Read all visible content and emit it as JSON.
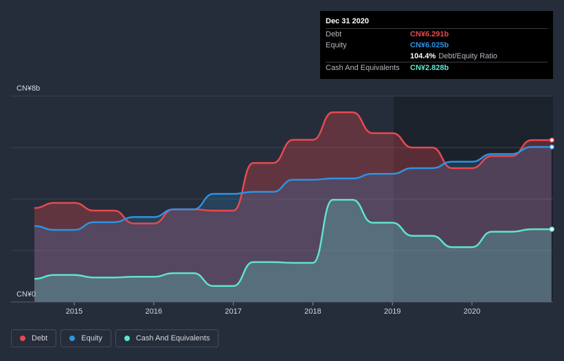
{
  "tooltip": {
    "date": "Dec 31 2020",
    "rows": [
      {
        "label": "Debt",
        "value": "CN¥6.291b",
        "color": "#e84a4f"
      },
      {
        "label": "Equity",
        "value": "CN¥6.025b",
        "color": "#2e93e3"
      }
    ],
    "ratio_value": "104.4%",
    "ratio_label": "Debt/Equity Ratio",
    "cash": {
      "label": "Cash And Equivalents",
      "value": "CN¥2.828b",
      "color": "#5ee5d2"
    }
  },
  "legend": [
    {
      "label": "Debt",
      "color": "#e84a4f"
    },
    {
      "label": "Equity",
      "color": "#2e93e3"
    },
    {
      "label": "Cash And Equivalents",
      "color": "#5ee5d2"
    }
  ],
  "chart_data": {
    "type": "area",
    "title": "",
    "xlabel": "",
    "ylabel": "",
    "ylim": [
      0,
      8
    ],
    "y_unit": "CN¥ billions",
    "y_ticks": [
      {
        "value": 8,
        "label": "CN¥8b"
      },
      {
        "value": 0,
        "label": "CN¥0"
      }
    ],
    "x_ticks": [
      {
        "value": 2015.0,
        "label": "2015"
      },
      {
        "value": 2016.0,
        "label": "2016"
      },
      {
        "value": 2017.0,
        "label": "2017"
      },
      {
        "value": 2018.0,
        "label": "2018"
      },
      {
        "value": 2019.0,
        "label": "2019"
      },
      {
        "value": 2020.0,
        "label": "2020"
      }
    ],
    "xlim": [
      2014.25,
      2021.0
    ],
    "series": [
      {
        "name": "Debt",
        "color": "#e84a4f",
        "points": [
          [
            2014.5,
            3.65
          ],
          [
            2014.75,
            3.85
          ],
          [
            2015.0,
            3.85
          ],
          [
            2015.25,
            3.55
          ],
          [
            2015.5,
            3.55
          ],
          [
            2015.75,
            3.05
          ],
          [
            2016.0,
            3.05
          ],
          [
            2016.25,
            3.6
          ],
          [
            2016.5,
            3.6
          ],
          [
            2016.75,
            3.55
          ],
          [
            2017.0,
            3.55
          ],
          [
            2017.25,
            5.4
          ],
          [
            2017.5,
            5.4
          ],
          [
            2017.75,
            6.3
          ],
          [
            2018.0,
            6.3
          ],
          [
            2018.25,
            7.37
          ],
          [
            2018.5,
            7.37
          ],
          [
            2018.75,
            6.56
          ],
          [
            2019.0,
            6.56
          ],
          [
            2019.25,
            6.0
          ],
          [
            2019.5,
            6.0
          ],
          [
            2019.75,
            5.2
          ],
          [
            2020.0,
            5.2
          ],
          [
            2020.25,
            5.67
          ],
          [
            2020.5,
            5.67
          ],
          [
            2020.75,
            6.291
          ],
          [
            2021.0,
            6.291
          ]
        ]
      },
      {
        "name": "Equity",
        "color": "#2e93e3",
        "points": [
          [
            2014.5,
            2.95
          ],
          [
            2014.75,
            2.8
          ],
          [
            2015.0,
            2.8
          ],
          [
            2015.25,
            3.1
          ],
          [
            2015.5,
            3.1
          ],
          [
            2015.75,
            3.3
          ],
          [
            2016.0,
            3.3
          ],
          [
            2016.25,
            3.6
          ],
          [
            2016.5,
            3.6
          ],
          [
            2016.75,
            4.2
          ],
          [
            2017.0,
            4.2
          ],
          [
            2017.25,
            4.28
          ],
          [
            2017.5,
            4.28
          ],
          [
            2017.75,
            4.75
          ],
          [
            2018.0,
            4.75
          ],
          [
            2018.25,
            4.8
          ],
          [
            2018.5,
            4.8
          ],
          [
            2018.75,
            4.98
          ],
          [
            2019.0,
            4.98
          ],
          [
            2019.25,
            5.2
          ],
          [
            2019.5,
            5.2
          ],
          [
            2019.75,
            5.45
          ],
          [
            2020.0,
            5.45
          ],
          [
            2020.25,
            5.75
          ],
          [
            2020.5,
            5.75
          ],
          [
            2020.75,
            6.025
          ],
          [
            2021.0,
            6.025
          ]
        ]
      },
      {
        "name": "Cash And Equivalents",
        "color": "#5ee5d2",
        "points": [
          [
            2014.5,
            0.9
          ],
          [
            2014.75,
            1.05
          ],
          [
            2015.0,
            1.05
          ],
          [
            2015.25,
            0.95
          ],
          [
            2015.5,
            0.95
          ],
          [
            2015.75,
            0.98
          ],
          [
            2016.0,
            0.98
          ],
          [
            2016.25,
            1.12
          ],
          [
            2016.5,
            1.12
          ],
          [
            2016.75,
            0.62
          ],
          [
            2017.0,
            0.62
          ],
          [
            2017.25,
            1.55
          ],
          [
            2017.5,
            1.55
          ],
          [
            2017.75,
            1.52
          ],
          [
            2018.0,
            1.52
          ],
          [
            2018.25,
            3.97
          ],
          [
            2018.5,
            3.97
          ],
          [
            2018.75,
            3.08
          ],
          [
            2019.0,
            3.08
          ],
          [
            2019.25,
            2.57
          ],
          [
            2019.5,
            2.57
          ],
          [
            2019.75,
            2.13
          ],
          [
            2020.0,
            2.13
          ],
          [
            2020.25,
            2.73
          ],
          [
            2020.5,
            2.73
          ],
          [
            2020.75,
            2.828
          ],
          [
            2021.0,
            2.828
          ]
        ]
      }
    ]
  }
}
